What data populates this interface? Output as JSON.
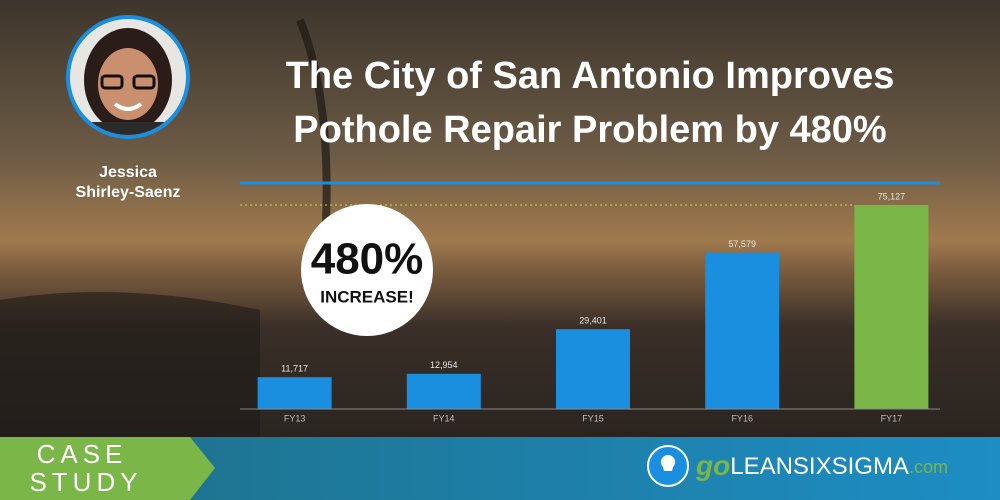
{
  "chart_data": {
    "type": "bar",
    "title_lines": [
      "The City of San Antonio Improves",
      "Pothole Repair Problem by 480%"
    ],
    "categories": [
      "FY13",
      "FY14",
      "FY15",
      "FY16",
      "FY17"
    ],
    "values": [
      11717,
      12954,
      29401,
      57579,
      75127
    ],
    "value_labels": [
      "11,717",
      "12,954",
      "29,401",
      "57,579",
      "75,127"
    ],
    "colors": [
      "#1a8fe0",
      "#1a8fe0",
      "#1a8fe0",
      "#1a8fe0",
      "#7ab648"
    ]
  },
  "person": {
    "name_lines": [
      "Jessica",
      "Shirley-Saenz"
    ]
  },
  "badge": {
    "number": "480%",
    "text": "INCREASE!"
  },
  "footer": {
    "label_lines": [
      "CASE",
      "STUDY"
    ],
    "logo": {
      "go": "go",
      "brand": "LEANSIXSIGMA",
      "tld": ".com"
    }
  }
}
